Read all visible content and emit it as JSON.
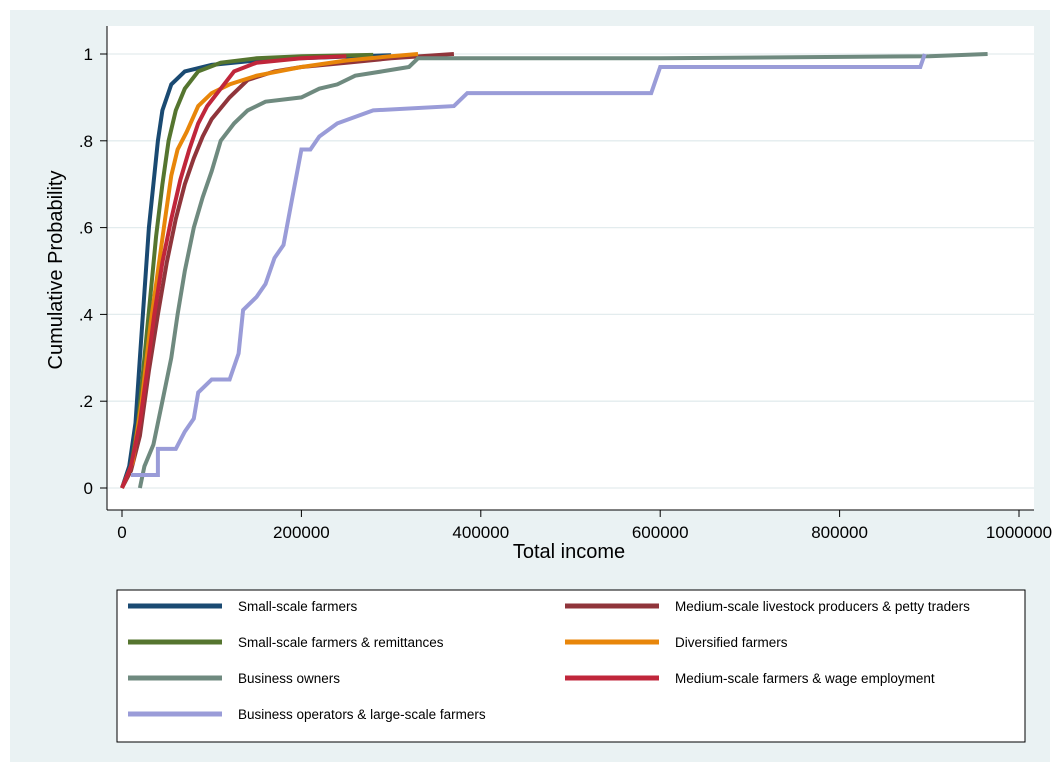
{
  "chart_data": {
    "type": "line",
    "title": "",
    "xlabel": "Total income",
    "ylabel": "Cumulative Probability",
    "xlim": [
      0,
      1000000
    ],
    "ylim": [
      0,
      1
    ],
    "xticks": [
      0,
      200000,
      400000,
      600000,
      800000,
      1000000
    ],
    "xtick_labels": [
      "0",
      "200000",
      "400000",
      "600000",
      "800000",
      "1000000"
    ],
    "yticks": [
      0,
      0.2,
      0.4,
      0.6,
      0.8,
      1
    ],
    "ytick_labels": [
      "0",
      ".2",
      ".4",
      ".6",
      ".8",
      "1"
    ],
    "grid": "horizontal",
    "legend_position": "bottom",
    "series": [
      {
        "name": "Small-scale farmers",
        "color": "#1a4a72",
        "points": [
          [
            0,
            0
          ],
          [
            8000,
            0.05
          ],
          [
            15000,
            0.15
          ],
          [
            20000,
            0.3
          ],
          [
            25000,
            0.45
          ],
          [
            30000,
            0.6
          ],
          [
            35000,
            0.7
          ],
          [
            40000,
            0.8
          ],
          [
            45000,
            0.87
          ],
          [
            55000,
            0.93
          ],
          [
            70000,
            0.96
          ],
          [
            100000,
            0.975
          ],
          [
            150000,
            0.985
          ],
          [
            200000,
            0.99
          ],
          [
            260000,
            0.995
          ],
          [
            300000,
            0.997
          ]
        ]
      },
      {
        "name": "Medium-scale livestock producers & petty traders",
        "color": "#90353b",
        "points": [
          [
            0,
            0
          ],
          [
            10000,
            0.04
          ],
          [
            20000,
            0.12
          ],
          [
            30000,
            0.27
          ],
          [
            40000,
            0.4
          ],
          [
            50000,
            0.52
          ],
          [
            60000,
            0.62
          ],
          [
            70000,
            0.7
          ],
          [
            80000,
            0.76
          ],
          [
            90000,
            0.81
          ],
          [
            100000,
            0.85
          ],
          [
            120000,
            0.9
          ],
          [
            140000,
            0.94
          ],
          [
            170000,
            0.96
          ],
          [
            200000,
            0.97
          ],
          [
            250000,
            0.98
          ],
          [
            300000,
            0.99
          ],
          [
            370000,
            1.0
          ]
        ]
      },
      {
        "name": "Small-scale farmers & remittances",
        "color": "#55752f",
        "points": [
          [
            0,
            0
          ],
          [
            10000,
            0.05
          ],
          [
            18000,
            0.15
          ],
          [
            25000,
            0.3
          ],
          [
            32000,
            0.45
          ],
          [
            38000,
            0.58
          ],
          [
            45000,
            0.7
          ],
          [
            52000,
            0.8
          ],
          [
            60000,
            0.87
          ],
          [
            70000,
            0.92
          ],
          [
            85000,
            0.96
          ],
          [
            110000,
            0.98
          ],
          [
            150000,
            0.99
          ],
          [
            200000,
            0.995
          ],
          [
            280000,
            0.998
          ]
        ]
      },
      {
        "name": "Diversified farmers",
        "color": "#e8860a",
        "points": [
          [
            0,
            0
          ],
          [
            12000,
            0.06
          ],
          [
            22000,
            0.2
          ],
          [
            32000,
            0.38
          ],
          [
            40000,
            0.5
          ],
          [
            48000,
            0.62
          ],
          [
            55000,
            0.72
          ],
          [
            62000,
            0.78
          ],
          [
            72000,
            0.82
          ],
          [
            85000,
            0.88
          ],
          [
            100000,
            0.91
          ],
          [
            120000,
            0.93
          ],
          [
            150000,
            0.95
          ],
          [
            200000,
            0.97
          ],
          [
            250000,
            0.985
          ],
          [
            300000,
            0.995
          ],
          [
            330000,
            1.0
          ]
        ]
      },
      {
        "name": "Business owners",
        "color": "#6f8a7f",
        "points": [
          [
            20000,
            0
          ],
          [
            25000,
            0.05
          ],
          [
            35000,
            0.1
          ],
          [
            45000,
            0.2
          ],
          [
            55000,
            0.3
          ],
          [
            62000,
            0.4
          ],
          [
            70000,
            0.5
          ],
          [
            80000,
            0.6
          ],
          [
            90000,
            0.67
          ],
          [
            100000,
            0.73
          ],
          [
            110000,
            0.8
          ],
          [
            125000,
            0.84
          ],
          [
            140000,
            0.87
          ],
          [
            160000,
            0.89
          ],
          [
            200000,
            0.9
          ],
          [
            220000,
            0.92
          ],
          [
            240000,
            0.93
          ],
          [
            260000,
            0.95
          ],
          [
            290000,
            0.96
          ],
          [
            320000,
            0.97
          ],
          [
            330000,
            0.99
          ],
          [
            600000,
            0.99
          ],
          [
            900000,
            0.995
          ],
          [
            965000,
            1.0
          ]
        ]
      },
      {
        "name": "Medium-scale farmers & wage employment",
        "color": "#c0263b",
        "points": [
          [
            0,
            0
          ],
          [
            10000,
            0.05
          ],
          [
            20000,
            0.15
          ],
          [
            28000,
            0.27
          ],
          [
            36000,
            0.4
          ],
          [
            45000,
            0.52
          ],
          [
            55000,
            0.62
          ],
          [
            65000,
            0.71
          ],
          [
            75000,
            0.78
          ],
          [
            85000,
            0.84
          ],
          [
            95000,
            0.88
          ],
          [
            110000,
            0.92
          ],
          [
            125000,
            0.96
          ],
          [
            150000,
            0.98
          ],
          [
            200000,
            0.99
          ],
          [
            250000,
            0.995
          ]
        ]
      },
      {
        "name": "Business operators & large-scale farmers",
        "color": "#9a9cd8",
        "points": [
          [
            10000,
            0.03
          ],
          [
            40000,
            0.03
          ],
          [
            40000,
            0.09
          ],
          [
            60000,
            0.09
          ],
          [
            70000,
            0.13
          ],
          [
            80000,
            0.16
          ],
          [
            85000,
            0.22
          ],
          [
            100000,
            0.25
          ],
          [
            120000,
            0.25
          ],
          [
            130000,
            0.31
          ],
          [
            135000,
            0.41
          ],
          [
            150000,
            0.44
          ],
          [
            160000,
            0.47
          ],
          [
            170000,
            0.53
          ],
          [
            180000,
            0.56
          ],
          [
            190000,
            0.67
          ],
          [
            200000,
            0.78
          ],
          [
            210000,
            0.78
          ],
          [
            220000,
            0.81
          ],
          [
            240000,
            0.84
          ],
          [
            280000,
            0.87
          ],
          [
            370000,
            0.88
          ],
          [
            385000,
            0.91
          ],
          [
            590000,
            0.91
          ],
          [
            600000,
            0.97
          ],
          [
            890000,
            0.97
          ],
          [
            895000,
            1.0
          ]
        ]
      }
    ]
  }
}
